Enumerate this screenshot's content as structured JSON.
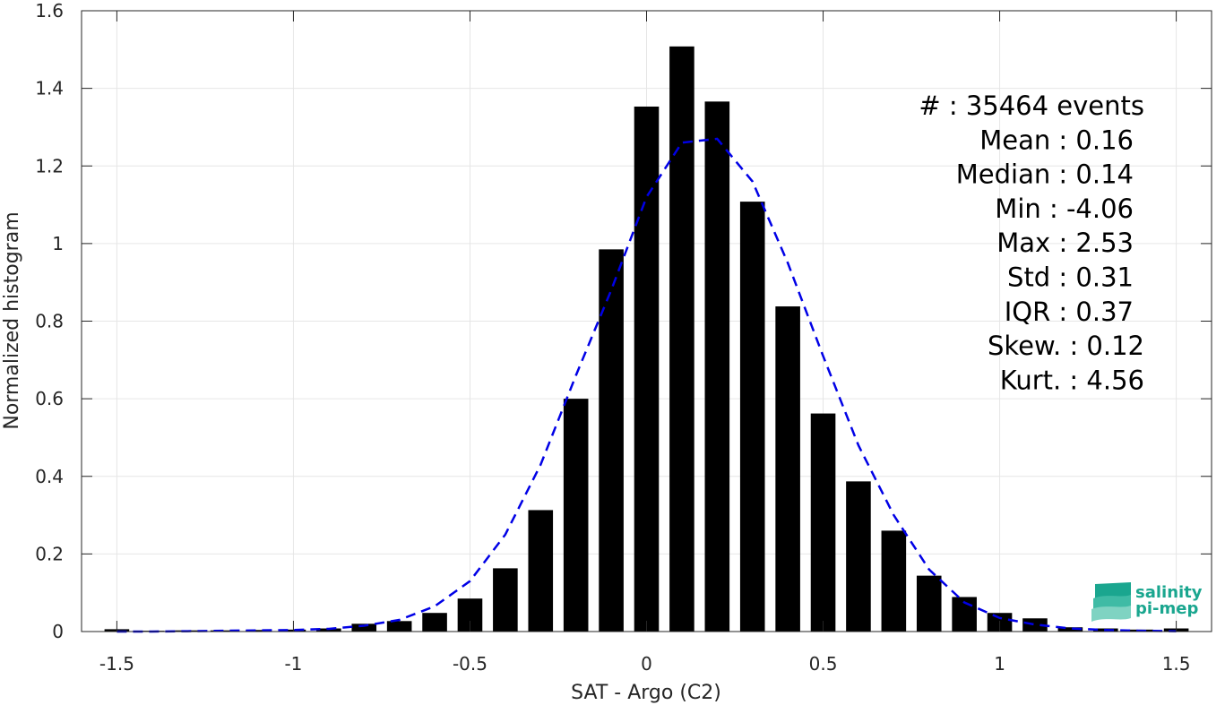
{
  "chart_data": {
    "type": "bar",
    "xlabel": "SAT - Argo (C2)",
    "ylabel": "Normalized histogram",
    "xlim": [
      -1.6,
      1.6
    ],
    "ylim": [
      0,
      1.6
    ],
    "x_ticks": [
      -1.5,
      -1,
      -0.5,
      0,
      0.5,
      1,
      1.5
    ],
    "x_tick_labels": [
      "-1.5",
      "-1",
      "-0.5",
      "0",
      "0.5",
      "1",
      "1.5"
    ],
    "y_ticks": [
      0,
      0.2,
      0.4,
      0.6,
      0.8,
      1,
      1.2,
      1.4,
      1.6
    ],
    "y_tick_labels": [
      "0",
      "0.2",
      "0.4",
      "0.6",
      "0.8",
      "1",
      "1.2",
      "1.4",
      "1.6"
    ],
    "grid": true,
    "bar_color": "#000000",
    "bins": {
      "x": [
        -1.5,
        -1.4,
        -1.3,
        -1.2,
        -1.1,
        -1.0,
        -0.9,
        -0.8,
        -0.7,
        -0.6,
        -0.5,
        -0.4,
        -0.3,
        -0.2,
        -0.1,
        0.0,
        0.1,
        0.2,
        0.3,
        0.4,
        0.5,
        0.6,
        0.7,
        0.8,
        0.9,
        1.0,
        1.1,
        1.2,
        1.3,
        1.4,
        1.5
      ],
      "values": [
        0.006,
        0.002,
        0.003,
        0.003,
        0.004,
        0.005,
        0.008,
        0.02,
        0.027,
        0.048,
        0.085,
        0.163,
        0.313,
        0.6,
        0.985,
        1.353,
        1.508,
        1.366,
        1.108,
        0.838,
        0.562,
        0.387,
        0.26,
        0.144,
        0.089,
        0.048,
        0.034,
        0.011,
        0.008,
        0.005,
        0.008
      ]
    },
    "fit_curve": {
      "color": "#0000e6",
      "style": "dashed",
      "x": [
        -1.5,
        -1.4,
        -1.3,
        -1.2,
        -1.1,
        -1.0,
        -0.9,
        -0.8,
        -0.7,
        -0.6,
        -0.5,
        -0.4,
        -0.3,
        -0.2,
        -0.1,
        0.0,
        0.1,
        0.2,
        0.3,
        0.4,
        0.5,
        0.6,
        0.7,
        0.8,
        0.9,
        1.0,
        1.1,
        1.2,
        1.3,
        1.4,
        1.5
      ],
      "y": [
        0.0,
        0.0,
        0.001,
        0.002,
        0.003,
        0.004,
        0.007,
        0.015,
        0.03,
        0.065,
        0.13,
        0.25,
        0.43,
        0.66,
        0.88,
        1.12,
        1.26,
        1.27,
        1.16,
        0.95,
        0.71,
        0.48,
        0.3,
        0.16,
        0.075,
        0.035,
        0.018,
        0.008,
        0.004,
        0.002,
        0.001
      ]
    },
    "stats": [
      {
        "label": "#  ",
        "value": ": 35464 events"
      },
      {
        "label": "Mean ",
        "value": ": 0.16"
      },
      {
        "label": "Median ",
        "value": ": 0.14"
      },
      {
        "label": "Min ",
        "value": ": -4.06"
      },
      {
        "label": "Max ",
        "value": ": 2.53"
      },
      {
        "label": "Std ",
        "value": ": 0.31"
      },
      {
        "label": "IQR ",
        "value": ": 0.37"
      },
      {
        "label": "Skew. ",
        "value": ": 0.12"
      },
      {
        "label": "Kurt. ",
        "value": ": 4.56"
      }
    ]
  },
  "logo": {
    "line1": "salinity",
    "line2": "pi-mep",
    "color": "#1aa68f"
  }
}
